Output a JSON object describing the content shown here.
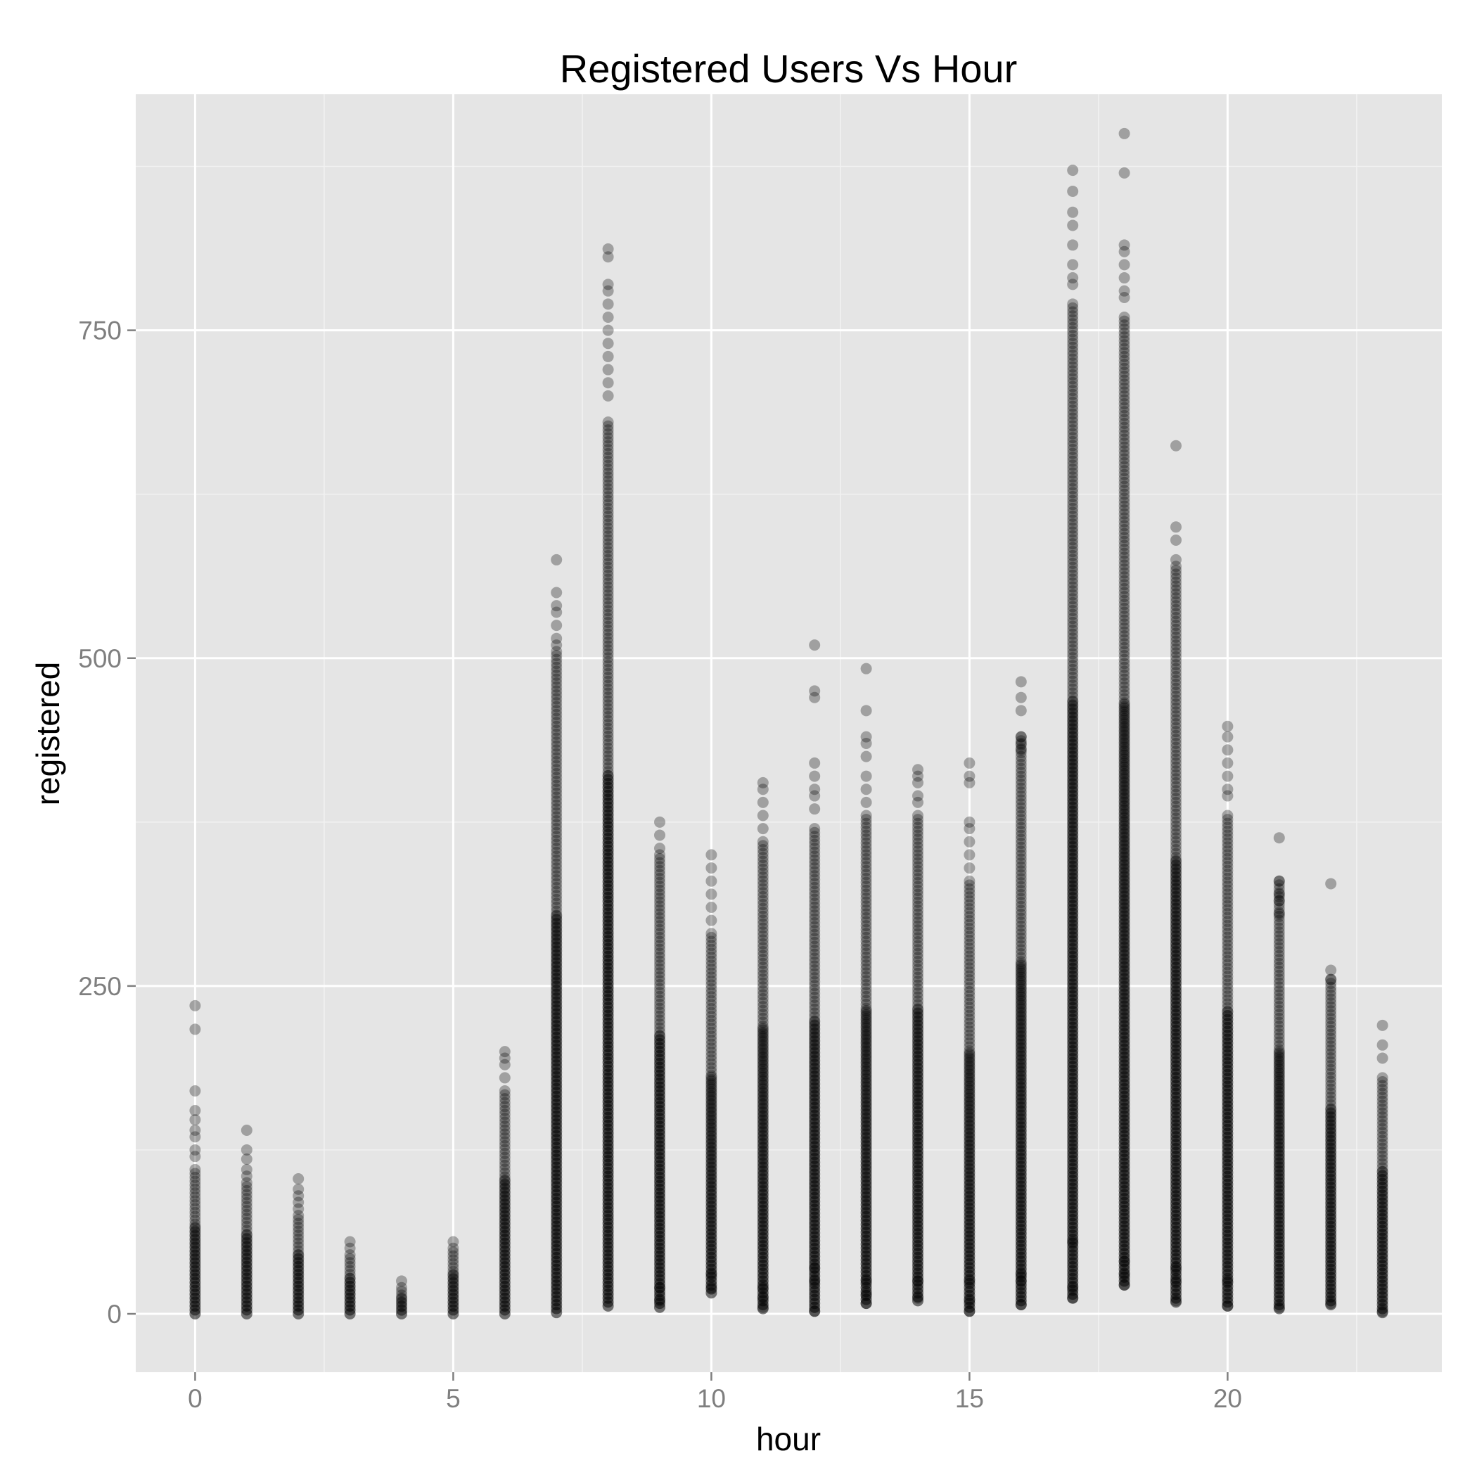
{
  "chart_data": {
    "type": "scatter",
    "title": "Registered Users Vs Hour",
    "xlabel": "hour",
    "ylabel": "registered",
    "xlim": [
      -1.15,
      24.15
    ],
    "ylim": [
      -44.5,
      930
    ],
    "x_ticks": [
      0,
      5,
      10,
      15,
      20
    ],
    "y_ticks": [
      0,
      250,
      500,
      750
    ],
    "grid": true,
    "legend": "none",
    "colors": {
      "panel_background": "#e5e5e5",
      "grid_major": "#ffffff",
      "grid_minor": "#f2f2f2",
      "point": "#000000",
      "tick_text": "#7f7f7f",
      "point_alpha": 0.3
    },
    "series": [
      {
        "hours": [
          0,
          1,
          2,
          3,
          4,
          5,
          6,
          7,
          8,
          9,
          10,
          11,
          12,
          13,
          14,
          15,
          16,
          17,
          18,
          19,
          20,
          21,
          22,
          23
        ],
        "min": [
          0,
          0,
          0,
          0,
          0,
          0,
          0,
          1,
          6,
          5,
          16,
          4,
          2,
          8,
          10,
          2,
          7,
          12,
          22,
          9,
          6,
          4,
          7,
          1
        ],
        "dense_top": [
          110,
          100,
          75,
          45,
          20,
          50,
          170,
          505,
          680,
          350,
          290,
          360,
          370,
          380,
          380,
          330,
          440,
          770,
          760,
          570,
          380,
          330,
          255,
          180
        ],
        "outliers": [
          [
            235,
            217,
            170,
            155,
            148,
            140,
            135,
            125,
            120
          ],
          [
            140,
            125,
            118,
            110,
            105
          ],
          [
            103,
            95,
            90,
            85,
            80
          ],
          [
            55,
            50
          ],
          [
            25
          ],
          [
            55
          ],
          [
            200,
            195,
            190,
            180
          ],
          [
            575,
            550,
            540,
            535,
            525,
            515,
            510
          ],
          [
            812,
            806,
            785,
            780,
            770,
            760,
            750,
            740,
            730,
            720,
            710,
            700
          ],
          [
            375,
            365,
            355
          ],
          [
            350,
            340,
            330,
            320,
            310,
            300
          ],
          [
            405,
            400,
            390,
            380,
            370
          ],
          [
            510,
            475,
            470,
            420,
            410,
            400,
            395,
            385
          ],
          [
            492,
            460,
            440,
            435,
            425,
            410,
            400,
            390
          ],
          [
            415,
            410,
            405,
            395,
            390
          ],
          [
            420,
            410,
            405,
            375,
            370,
            360,
            350,
            340
          ],
          [
            482,
            470,
            460,
            440,
            435,
            430
          ],
          [
            872,
            856,
            840,
            830,
            815,
            800,
            790,
            785
          ],
          [
            900,
            870,
            815,
            810,
            800,
            790,
            780,
            775
          ],
          [
            662,
            600,
            590,
            575
          ],
          [
            448,
            440,
            430,
            420,
            410,
            400,
            395
          ],
          [
            363,
            330,
            320,
            315,
            305
          ],
          [
            328,
            262,
            255
          ],
          [
            220,
            205,
            195
          ]
        ],
        "low_outliers": [
          [],
          [],
          [],
          [],
          [],
          [],
          [],
          [],
          [],
          [
            10,
            20
          ],
          [
            20,
            30
          ],
          [
            5,
            12,
            20
          ],
          [
            2,
            25,
            35
          ],
          [
            8,
            15,
            25
          ],
          [
            12,
            25
          ],
          [
            2,
            10,
            25
          ],
          [
            7,
            25,
            30
          ],
          [
            12,
            20,
            55
          ],
          [
            22,
            30,
            40
          ],
          [
            10,
            25,
            35
          ],
          [
            6,
            25
          ],
          [
            5
          ],
          [
            8
          ],
          [
            2
          ]
        ]
      }
    ]
  }
}
